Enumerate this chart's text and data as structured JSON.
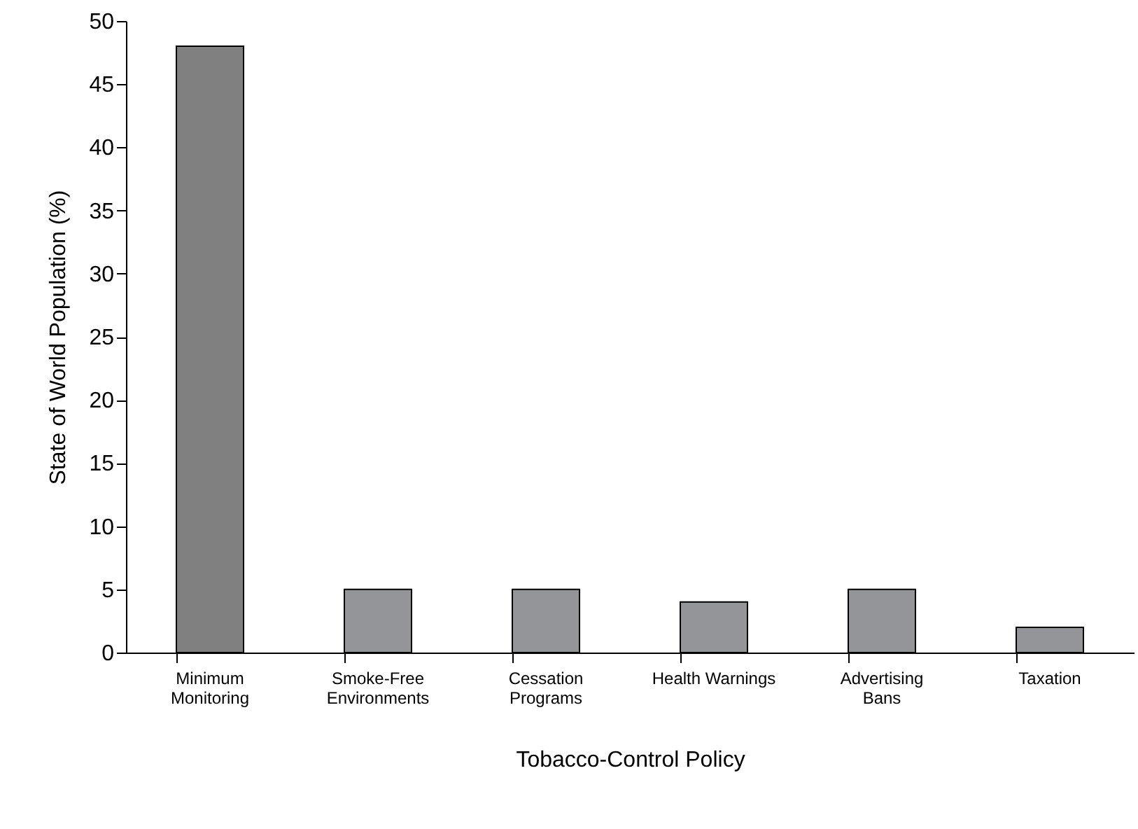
{
  "chart_data": {
    "type": "bar",
    "xlabel": "Tobacco-Control Policy",
    "ylabel": "State of World Population (%)",
    "categories": [
      "Minimum\nMonitoring",
      "Smoke-Free\nEnvironments",
      "Cessation\nPrograms",
      "Health Warnings",
      "Advertising\nBans",
      "Taxation"
    ],
    "values": [
      48,
      5,
      5,
      4,
      5,
      2
    ],
    "colors": [
      "#808080",
      "#939598",
      "#939598",
      "#939598",
      "#939598",
      "#939598"
    ],
    "ylim": [
      0,
      50
    ],
    "yticks": [
      0,
      5,
      10,
      15,
      20,
      25,
      30,
      35,
      40,
      45,
      50
    ],
    "grid": false
  }
}
